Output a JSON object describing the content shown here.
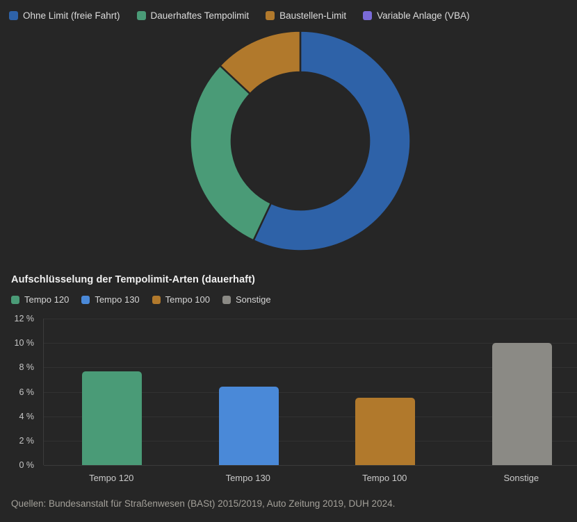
{
  "page": {
    "background": "#262626"
  },
  "section": {
    "title": "Aufschlüsselung der Tempolimit-Arten (dauerhaft)"
  },
  "source_note": "Quellen: Bundesanstalt für Straßenwesen (BASt) 2015/2019, Auto Zeitung 2019, DUH 2024.",
  "chart_data": [
    {
      "type": "pie",
      "subtype": "donut",
      "unit": "%",
      "legend_position": "top",
      "inner_radius_ratio": 0.625,
      "segments": [
        {
          "label": "Ohne Limit (freie Fahrt)",
          "value": 57,
          "color": "#2e62a8"
        },
        {
          "label": "Dauerhaftes Tempolimit",
          "value": 30,
          "color": "#4a9b77"
        },
        {
          "label": "Baustellen-Limit",
          "value": 13,
          "color": "#b1792c"
        },
        {
          "label": "Variable Anlage (VBA)",
          "value": 0,
          "color": "#7a6bd8"
        }
      ]
    },
    {
      "type": "bar",
      "title": "Aufschlüsselung der Tempolimit-Arten (dauerhaft)",
      "unit": "%",
      "categories": [
        "Tempo 120",
        "Tempo 130",
        "Tempo 100",
        "Sonstige"
      ],
      "values": [
        7.7,
        6.4,
        5.5,
        10
      ],
      "colors": [
        "#4a9b77",
        "#4a89d8",
        "#b1792c",
        "#8b8a85"
      ],
      "ylim": [
        0,
        12
      ],
      "yticks": [
        {
          "value": 0,
          "label": "0 %"
        },
        {
          "value": 2,
          "label": "2 %"
        },
        {
          "value": 4,
          "label": "4 %"
        },
        {
          "value": 6,
          "label": "6 %"
        },
        {
          "value": 8,
          "label": "8 %"
        },
        {
          "value": 10,
          "label": "10 %"
        },
        {
          "value": 12,
          "label": "12 %"
        }
      ],
      "grid": true,
      "legend_position": "top"
    }
  ]
}
